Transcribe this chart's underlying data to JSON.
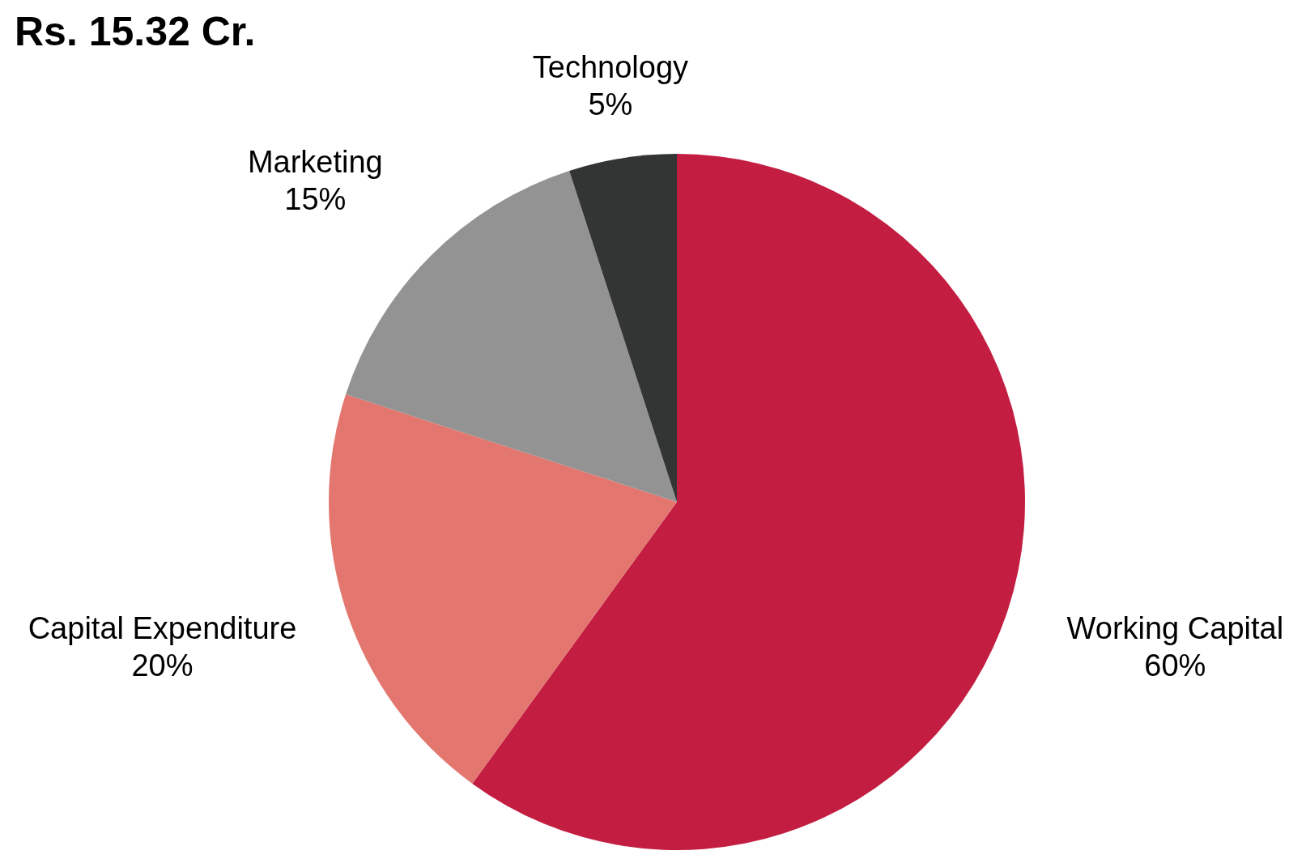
{
  "chart_data": {
    "type": "pie",
    "title": "Rs. 15.32 Cr.",
    "categories": [
      "Working Capital",
      "Capital Expenditure",
      "Marketing",
      "Technology"
    ],
    "values": [
      60,
      20,
      15,
      5
    ],
    "value_labels": [
      "60%",
      "20%",
      "15%",
      "5%"
    ],
    "colors": [
      "#c31e42",
      "#e3776f",
      "#939393",
      "#333535"
    ]
  }
}
